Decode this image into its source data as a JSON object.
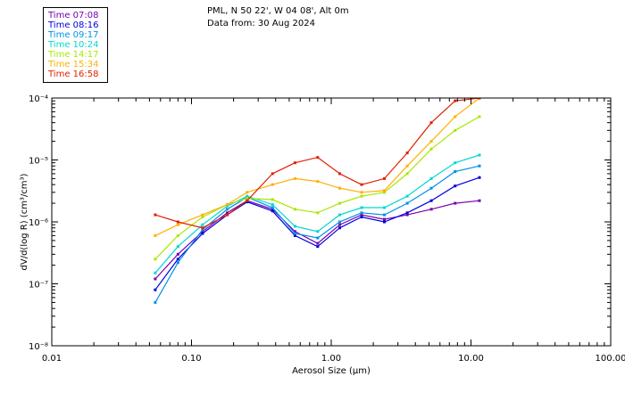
{
  "header": {
    "site": "PML, N 50 22', W 04 08', Alt 0m",
    "date": "Data from: 30 Aug 2024"
  },
  "legend": [
    {
      "label": "Time 07:08",
      "color": "#7a00b0"
    },
    {
      "label": "Time 08:16",
      "color": "#0000e0"
    },
    {
      "label": "Time 09:17",
      "color": "#0090e8"
    },
    {
      "label": "Time 10:24",
      "color": "#00d8d0"
    },
    {
      "label": "Time 14:17",
      "color": "#a8e800"
    },
    {
      "label": "Time 15:34",
      "color": "#ffb000"
    },
    {
      "label": "Time 16:58",
      "color": "#e02000"
    }
  ],
  "chart_data": {
    "type": "line",
    "title": "",
    "xlabel": "Aerosol Size (μm)",
    "ylabel": "dV/d(log R) (cm³/cm³)",
    "xscale": "log",
    "yscale": "log",
    "xlim": [
      0.01,
      100
    ],
    "ylim": [
      1e-08,
      0.0001
    ],
    "x_tick_labels": [
      "0.01",
      "0.10",
      "1.00",
      "10.00",
      "100.00"
    ],
    "y_tick_labels": [
      "10⁻⁸",
      "10⁻⁷",
      "10⁻⁶",
      "10⁻⁵",
      "10⁻⁴"
    ],
    "x": [
      0.055,
      0.08,
      0.12,
      0.18,
      0.25,
      0.38,
      0.55,
      0.8,
      1.15,
      1.65,
      2.4,
      3.5,
      5.2,
      7.7,
      11.5
    ],
    "series": [
      {
        "name": "Time 07:08",
        "color": "#7a00b0",
        "values": [
          1.2e-07,
          3e-07,
          7e-07,
          1.4e-06,
          2.2e-06,
          1.6e-06,
          7e-07,
          4.5e-07,
          9e-07,
          1.3e-06,
          1.1e-06,
          1.3e-06,
          1.6e-06,
          2e-06,
          2.2e-06
        ]
      },
      {
        "name": "Time 08:16",
        "color": "#0000e0",
        "values": [
          8e-08,
          2.5e-07,
          6.5e-07,
          1.3e-06,
          2.1e-06,
          1.5e-06,
          6e-07,
          4e-07,
          8e-07,
          1.2e-06,
          1e-06,
          1.4e-06,
          2.2e-06,
          3.8e-06,
          5.2e-06
        ]
      },
      {
        "name": "Time 09:17",
        "color": "#0090e8",
        "values": [
          5e-08,
          2.2e-07,
          7.5e-07,
          1.6e-06,
          2.5e-06,
          1.7e-06,
          6.5e-07,
          5.5e-07,
          1e-06,
          1.4e-06,
          1.3e-06,
          2e-06,
          3.5e-06,
          6.5e-06,
          8e-06
        ]
      },
      {
        "name": "Time 10:24",
        "color": "#00d8d0",
        "values": [
          1.5e-07,
          4e-07,
          9e-07,
          1.8e-06,
          2.6e-06,
          1.9e-06,
          8.5e-07,
          7e-07,
          1.3e-06,
          1.7e-06,
          1.7e-06,
          2.6e-06,
          5e-06,
          9e-06,
          1.2e-05
        ]
      },
      {
        "name": "Time 14:17",
        "color": "#a8e800",
        "values": [
          2.5e-07,
          6e-07,
          1.2e-06,
          1.9e-06,
          2.4e-06,
          2.3e-06,
          1.6e-06,
          1.4e-06,
          2e-06,
          2.6e-06,
          3e-06,
          6e-06,
          1.5e-05,
          3e-05,
          5e-05
        ]
      },
      {
        "name": "Time 15:34",
        "color": "#ffb000",
        "values": [
          6e-07,
          9e-07,
          1.3e-06,
          1.9e-06,
          3e-06,
          4e-06,
          5e-06,
          4.5e-06,
          3.5e-06,
          3e-06,
          3.2e-06,
          8e-06,
          2e-05,
          5e-05,
          0.0001
        ]
      },
      {
        "name": "Time 16:58",
        "color": "#e02000",
        "values": [
          1.3e-06,
          1e-06,
          8e-07,
          1.3e-06,
          2.2e-06,
          6e-06,
          9e-06,
          1.1e-05,
          6e-06,
          4e-06,
          5e-06,
          1.3e-05,
          4e-05,
          9e-05,
          0.0001
        ]
      }
    ]
  }
}
